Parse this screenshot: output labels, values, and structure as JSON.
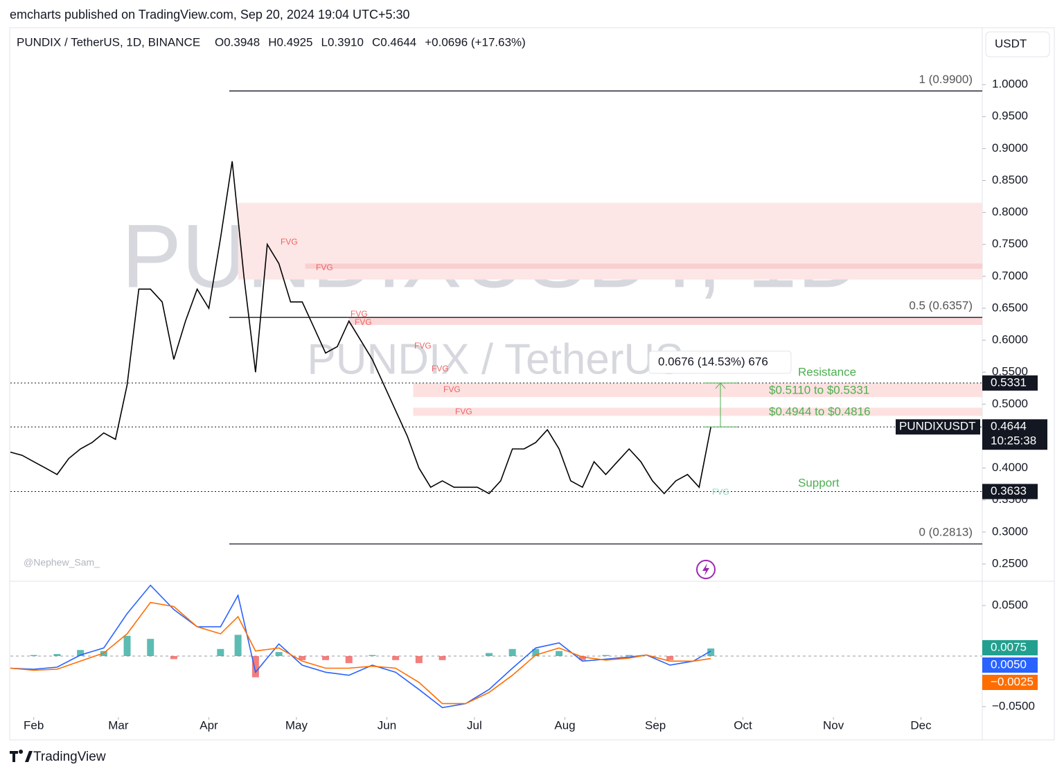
{
  "header": {
    "publisher": "emcharts published on TradingView.com, Sep 20, 2024 19:04 UTC+5:30"
  },
  "chart_data": [
    {
      "type": "line",
      "title": "PUNDIX / TetherUS, 1D, BINANCE",
      "ohlc": [
        "O0.3948",
        "H0.4925",
        "L0.3910",
        "C0.4644",
        "+0.0696 (+17.63%)"
      ],
      "currency": "USDT",
      "watermark": "PUNDIXUSDT, 1D",
      "watermark_sub": "PUNDIX / TetherUS",
      "credit": "@Nephew_Sam_",
      "x": [
        -8,
        -4,
        0,
        4,
        8,
        12,
        16,
        20,
        24,
        28,
        32,
        36,
        40,
        44,
        48,
        52,
        56,
        60,
        64,
        68,
        72,
        76,
        80,
        84,
        88,
        92,
        96,
        100,
        104,
        108,
        112,
        116,
        120,
        124,
        128,
        132,
        136,
        140,
        144,
        148,
        152,
        156,
        160,
        164,
        168,
        172,
        176,
        180,
        184,
        188,
        192,
        196,
        200,
        204,
        208,
        212,
        216,
        220,
        224,
        228,
        232
      ],
      "series": [
        {
          "name": "PUNDIXUSDT",
          "color": "#000000",
          "values": [
            0.425,
            0.42,
            0.41,
            0.4,
            0.39,
            0.415,
            0.43,
            0.44,
            0.455,
            0.445,
            0.53,
            0.68,
            0.68,
            0.66,
            0.57,
            0.63,
            0.68,
            0.65,
            0.76,
            0.88,
            0.7,
            0.55,
            0.75,
            0.72,
            0.66,
            0.66,
            0.62,
            0.58,
            0.59,
            0.63,
            0.6,
            0.57,
            0.53,
            0.49,
            0.45,
            0.4,
            0.37,
            0.38,
            0.37,
            0.37,
            0.37,
            0.36,
            0.38,
            0.43,
            0.43,
            0.44,
            0.46,
            0.43,
            0.38,
            0.37,
            0.41,
            0.39,
            0.41,
            0.43,
            0.41,
            0.38,
            0.36,
            0.38,
            0.39,
            0.37,
            0.4644
          ]
        }
      ],
      "xlim": [
        -8,
        325
      ],
      "xticks": [
        {
          "value": 0,
          "label": "Feb"
        },
        {
          "value": 29,
          "label": "Mar"
        },
        {
          "value": 60,
          "label": "Apr"
        },
        {
          "value": 90,
          "label": "May"
        },
        {
          "value": 121,
          "label": "Jun"
        },
        {
          "value": 151,
          "label": "Jul"
        },
        {
          "value": 182,
          "label": "Aug"
        },
        {
          "value": 213,
          "label": "Sep"
        },
        {
          "value": 243,
          "label": "Oct"
        },
        {
          "value": 274,
          "label": "Nov"
        },
        {
          "value": 304,
          "label": "Dec"
        }
      ],
      "ylim": [
        0.224,
        1.089
      ],
      "yticks": [
        {
          "value": 0.25,
          "label": "0.2500"
        },
        {
          "value": 0.3,
          "label": "0.3000"
        },
        {
          "value": 0.35,
          "label": "0.3500"
        },
        {
          "value": 0.4,
          "label": "0.4000"
        },
        {
          "value": 0.45,
          "label": "0.4500"
        },
        {
          "value": 0.5,
          "label": "0.5000"
        },
        {
          "value": 0.55,
          "label": "0.5500"
        },
        {
          "value": 0.6,
          "label": "0.6000"
        },
        {
          "value": 0.65,
          "label": "0.6500"
        },
        {
          "value": 0.7,
          "label": "0.7000"
        },
        {
          "value": 0.75,
          "label": "0.7500"
        },
        {
          "value": 0.8,
          "label": "0.8000"
        },
        {
          "value": 0.85,
          "label": "0.8500"
        },
        {
          "value": 0.9,
          "label": "0.9000"
        },
        {
          "value": 0.95,
          "label": "0.9500"
        },
        {
          "value": 1.0,
          "label": "1.0000"
        }
      ],
      "fib_start": 67,
      "fib_levels": [
        {
          "value": 0.99,
          "label": "1 (0.9900)"
        },
        {
          "value": 0.6357,
          "label": "0.5 (0.6357)"
        },
        {
          "value": 0.2813,
          "label": "0 (0.2813)"
        }
      ],
      "zones": [
        {
          "low": 0.695,
          "high": 0.815,
          "start": 70,
          "color": "#fde6e6"
        },
        {
          "low": 0.712,
          "high": 0.72,
          "start": 93,
          "color": "#f9cfd0"
        },
        {
          "low": 0.624,
          "high": 0.635,
          "start": 108,
          "color": "#fbd9da"
        },
        {
          "low": 0.511,
          "high": 0.5331,
          "start": 130,
          "color": "#fde1e1"
        },
        {
          "low": 0.4816,
          "high": 0.4944,
          "start": 130,
          "color": "#fde1e1"
        }
      ],
      "fvg_labels": [
        "FVG",
        "FVG",
        "FVG",
        "FVG",
        "FVG",
        "FVG",
        "FVG",
        "FVG",
        "FVG"
      ],
      "price_lines": [
        0.5331,
        0.4644,
        0.3633
      ],
      "tags": [
        {
          "value": 0.5331
        },
        {
          "value": 0.4644,
          "countdown": "10:25:38"
        },
        {
          "value": 0.3633
        }
      ],
      "annotations": {
        "measure": "0.0676 (14.53%) 676",
        "resistance": "Resistance",
        "zone_high": "$0.5110 to $0.5331",
        "zone_low": "$0.4944 to $0.4816",
        "support": "Support"
      }
    },
    {
      "type": "macd",
      "x": [
        -8,
        0,
        8,
        16,
        24,
        32,
        40,
        48,
        56,
        64,
        70,
        76,
        84,
        92,
        100,
        108,
        116,
        124,
        132,
        140,
        148,
        156,
        164,
        172,
        180,
        188,
        196,
        204,
        210,
        218,
        226,
        232
      ],
      "histogram": {
        "positive_color": "#26a69a",
        "negative_color": "#ef5350",
        "values": [
          0,
          0.001,
          0.002,
          0.006,
          0.005,
          0.02,
          0.017,
          -0.003,
          0,
          0.007,
          0.021,
          -0.021,
          0.004,
          -0.004,
          -0.004,
          -0.007,
          0.001,
          -0.004,
          -0.007,
          -0.004,
          0,
          0.003,
          0.007,
          0.007,
          0.005,
          -0.004,
          0.001,
          0.001,
          0,
          -0.004,
          0,
          0.0075
        ],
        "tag": {
          "value": 0.0075,
          "color": "#22a08f"
        }
      },
      "series": [
        {
          "color": "#2962ff",
          "values": [
            -0.012,
            -0.013,
            -0.011,
            0.001,
            0.008,
            0.042,
            0.07,
            0.046,
            0.029,
            0.029,
            0.06,
            -0.016,
            0.012,
            -0.009,
            -0.016,
            -0.019,
            -0.009,
            -0.016,
            -0.033,
            -0.051,
            -0.047,
            -0.033,
            -0.012,
            0.008,
            0.013,
            -0.005,
            -0.003,
            -0.001,
            0.001,
            -0.009,
            -0.005,
            0.005
          ],
          "tag": {
            "value": 0.005,
            "label": "0.0050"
          }
        },
        {
          "color": "#ff6d00",
          "values": [
            -0.012,
            -0.014,
            -0.013,
            -0.005,
            0.003,
            0.022,
            0.053,
            0.049,
            0.029,
            0.022,
            0.039,
            0.005,
            0.008,
            -0.005,
            -0.012,
            -0.012,
            -0.01,
            -0.012,
            -0.026,
            -0.047,
            -0.047,
            -0.036,
            -0.019,
            0.001,
            0.008,
            -0.001,
            -0.004,
            -0.002,
            0.001,
            -0.005,
            -0.005,
            -0.0025
          ],
          "tag": {
            "value": -0.0025,
            "label": "−0.0025"
          }
        }
      ],
      "ylim": [
        -0.0603,
        0.0733
      ],
      "yticks": [
        {
          "value": 0.05,
          "label": "0.0500"
        },
        {
          "value": -0.05,
          "label": "−0.0500"
        }
      ]
    }
  ],
  "footer": {
    "brand": "TradingView"
  }
}
